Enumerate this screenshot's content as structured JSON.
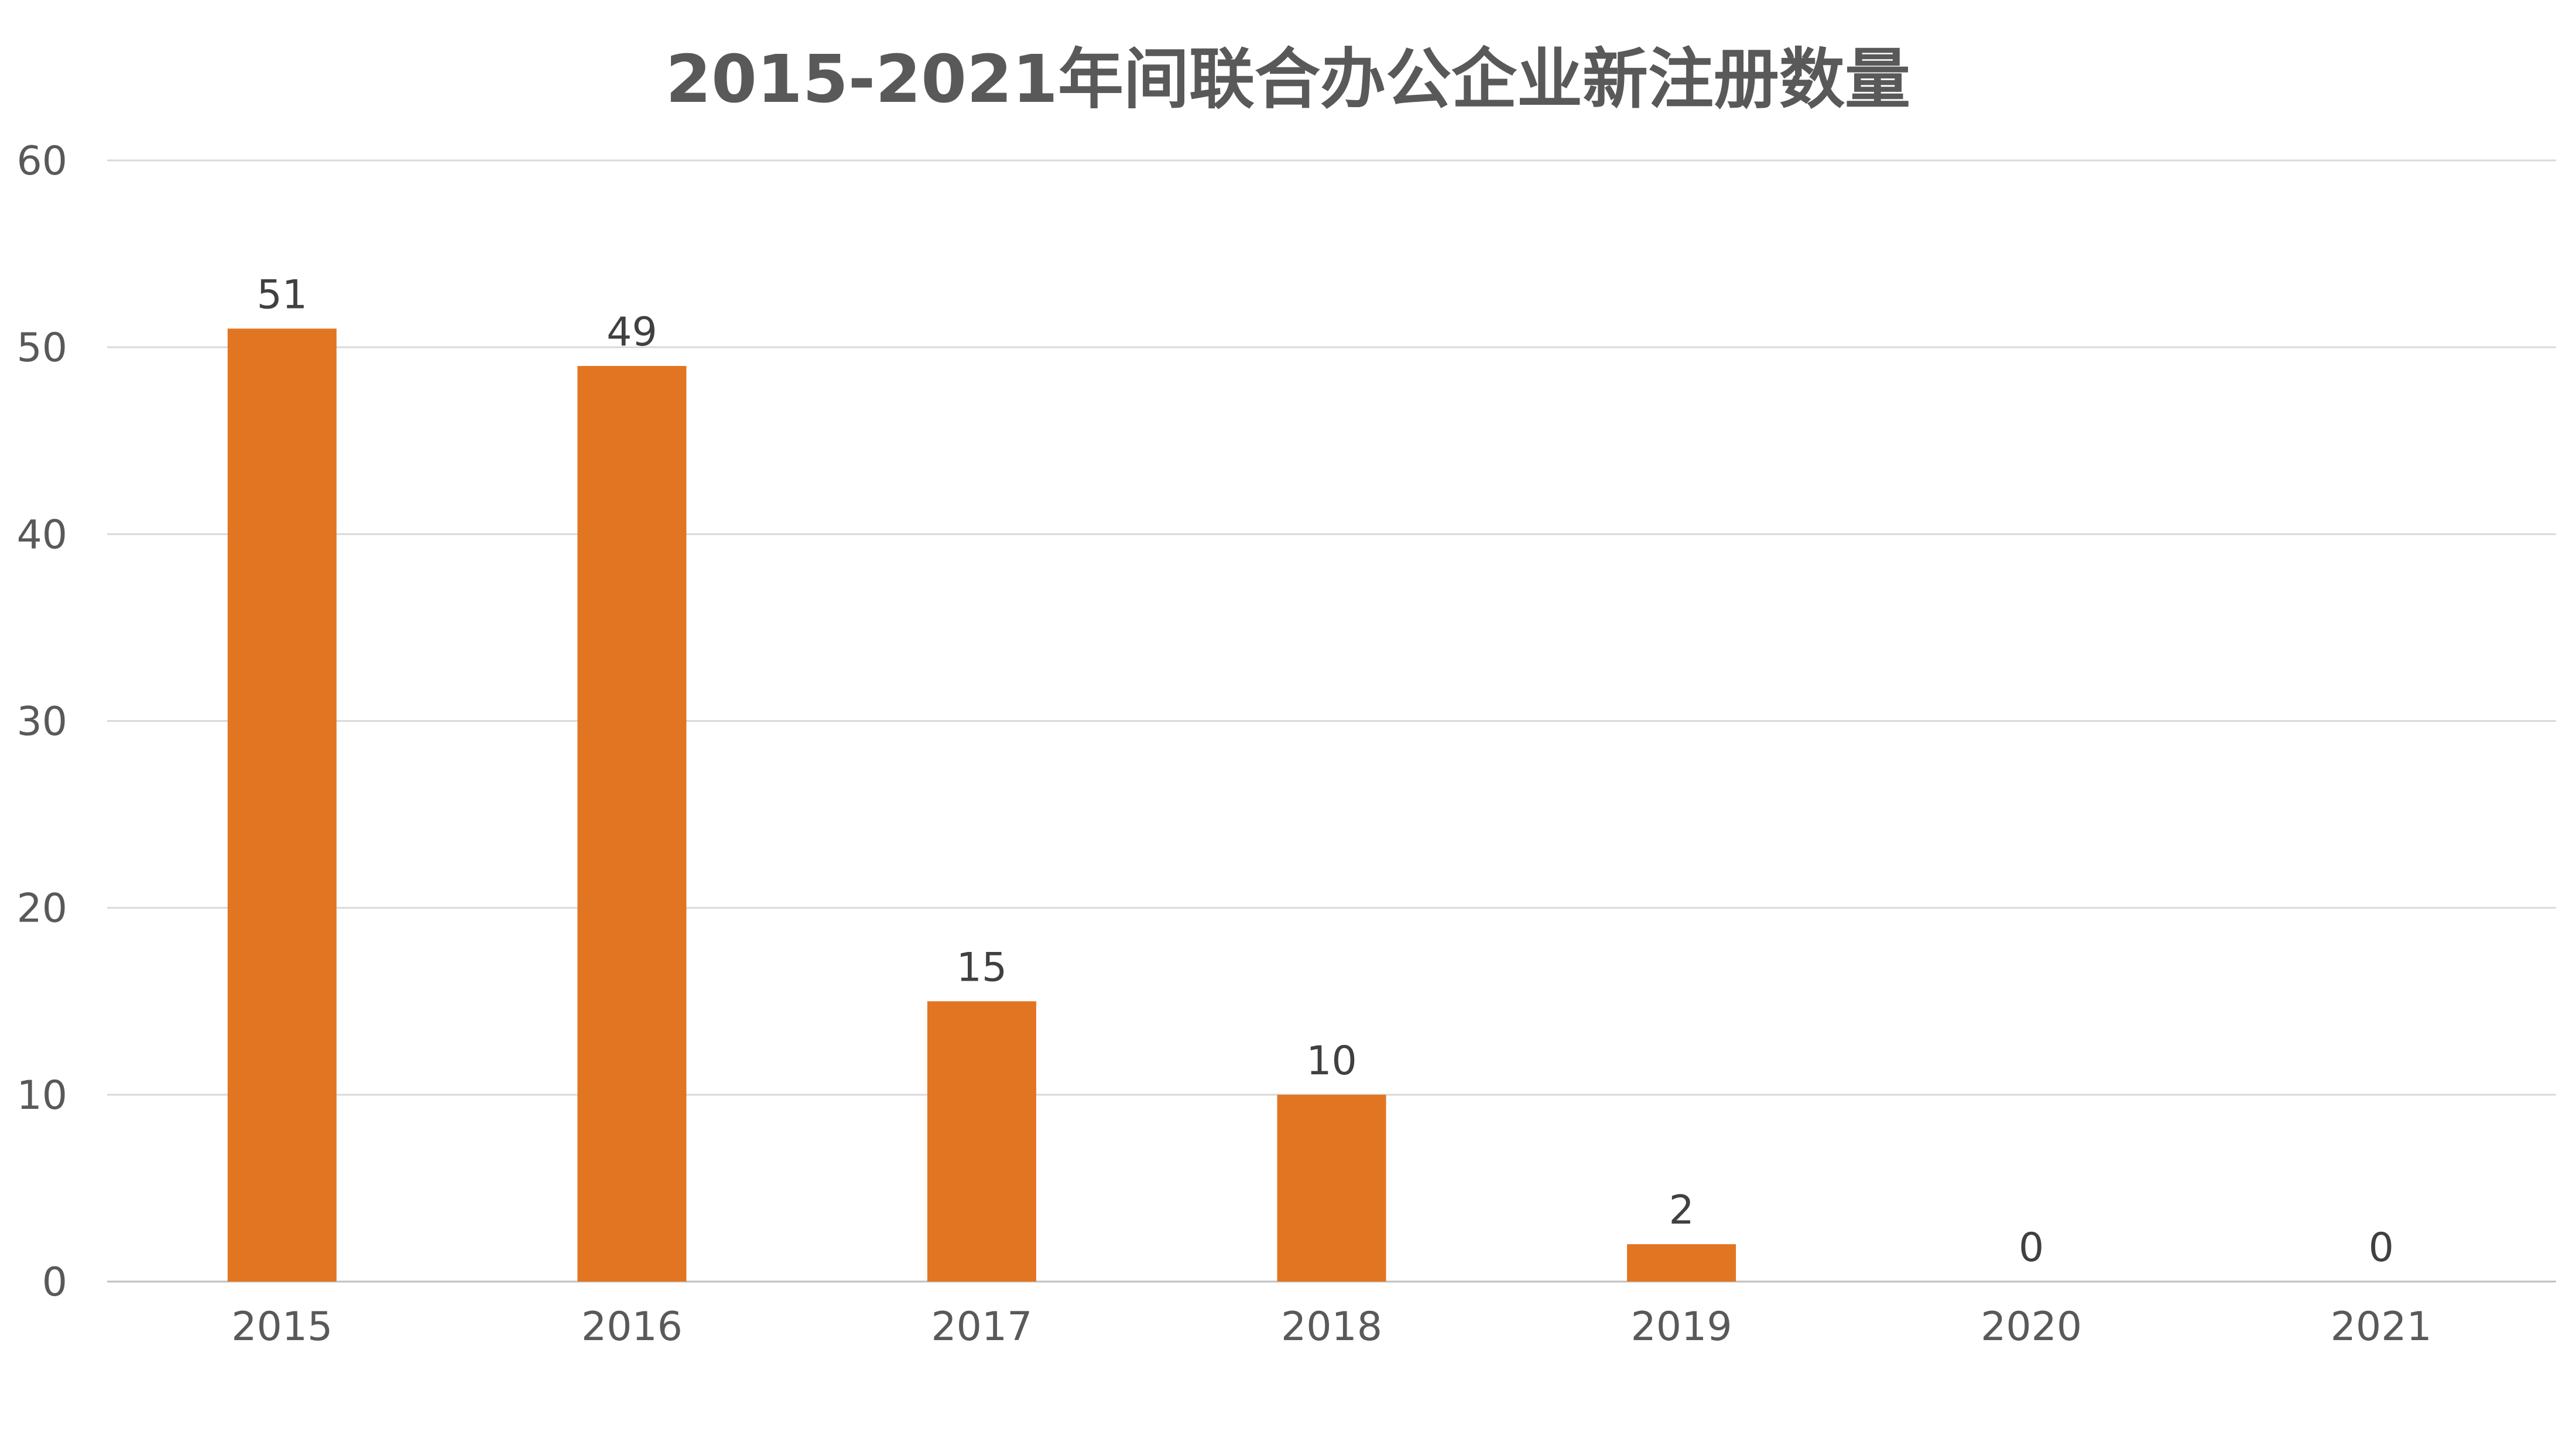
{
  "chart_data": {
    "type": "bar",
    "title": "2015-2021年间联合办公企业新注册数量",
    "categories": [
      "2015",
      "2016",
      "2017",
      "2018",
      "2019",
      "2020",
      "2021"
    ],
    "values": [
      51,
      49,
      15,
      10,
      2,
      0,
      0
    ],
    "ylim": [
      0,
      60
    ],
    "yticks": [
      0,
      10,
      20,
      30,
      40,
      50,
      60
    ],
    "xlabel": "",
    "ylabel": "",
    "grid": true,
    "data_labels": true,
    "bar_color": "#E27522",
    "text_color": "#595959",
    "grid_color": "#D9D9D9"
  }
}
